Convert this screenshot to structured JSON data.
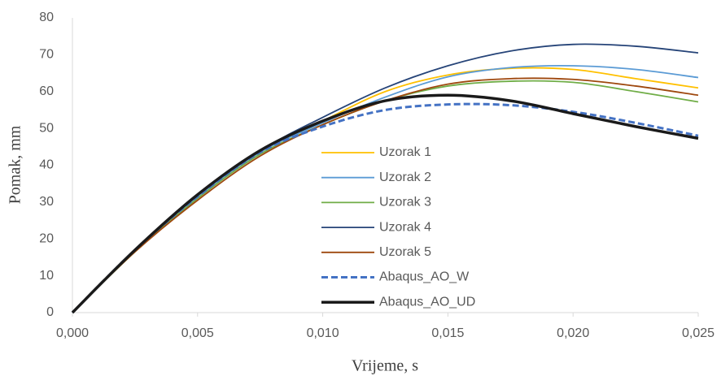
{
  "chart_data": {
    "type": "line",
    "x_label": "Vrijeme, s",
    "y_label": "Pomak, mm",
    "x": [
      0,
      0.0025,
      0.005,
      0.0075,
      0.01,
      0.0125,
      0.015,
      0.0175,
      0.02,
      0.0225,
      0.025
    ],
    "series": [
      {
        "name": "Uzorak 1",
        "color": "#ffc000",
        "values": [
          0,
          17,
          31.5,
          43.5,
          52,
          60,
          64.5,
          66.3,
          66,
          63.5,
          61
        ]
      },
      {
        "name": "Uzorak 2",
        "color": "#5b9bd5",
        "values": [
          0,
          17,
          31.5,
          43.5,
          51.5,
          58.5,
          64,
          66.5,
          67,
          66,
          63.8
        ]
      },
      {
        "name": "Uzorak 3",
        "color": "#70ad47",
        "values": [
          0,
          16.5,
          31,
          43,
          51,
          57.5,
          61.5,
          62.8,
          62.5,
          60,
          57.2
        ]
      },
      {
        "name": "Uzorak 4",
        "color": "#264478",
        "values": [
          0,
          17,
          32,
          44,
          53,
          61,
          67,
          71,
          72.8,
          72.3,
          70.5
        ]
      },
      {
        "name": "Uzorak 5",
        "color": "#9e480e",
        "values": [
          0,
          16.5,
          30.5,
          42.5,
          51,
          57.5,
          62,
          63.5,
          63.3,
          61.5,
          59
        ]
      },
      {
        "name": "Abaqus_AO_W",
        "color": "#4472c4",
        "dashed": true,
        "values": [
          0,
          17,
          31.5,
          43.5,
          50.5,
          55,
          56.5,
          56.3,
          54.5,
          51.5,
          48
        ]
      },
      {
        "name": "Abaqus_AO_UD",
        "color": "#1a1a1a",
        "thick": true,
        "values": [
          0,
          17,
          32,
          44,
          52,
          57.5,
          59,
          57.5,
          54,
          50.5,
          47.3
        ]
      }
    ],
    "xlim": [
      0,
      0.025
    ],
    "xticks": [
      {
        "value": 0,
        "label": "0,000"
      },
      {
        "value": 0.005,
        "label": "0,005"
      },
      {
        "value": 0.01,
        "label": "0,010"
      },
      {
        "value": 0.015,
        "label": "0,015"
      },
      {
        "value": 0.02,
        "label": "0,020"
      },
      {
        "value": 0.025,
        "label": "0,025"
      }
    ],
    "ylim": [
      0,
      80
    ],
    "yticks": [
      0,
      10,
      20,
      30,
      40,
      50,
      60,
      70,
      80
    ],
    "grid": false,
    "legend": "center"
  }
}
